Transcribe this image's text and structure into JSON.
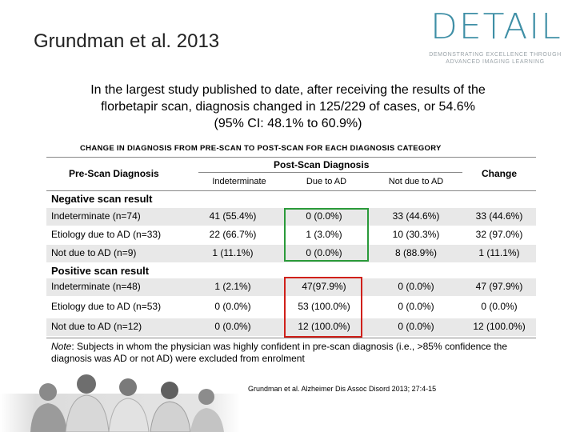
{
  "slide": {
    "title": "Grundman et al. 2013",
    "headline_lines": [
      "In the largest study published to date, after receiving the results of the",
      "florbetapir scan, diagnosis changed in 125/229 of cases, or 54.6%",
      "(95% CI: 48.1% to 60.9%)"
    ]
  },
  "logo": {
    "word": "DETAIL",
    "tagline_1": "DEMONSTRATING EXCELLENCE THROUGH",
    "tagline_2": "ADVANCED IMAGING LEARNING",
    "color": "#3f8fa6"
  },
  "table": {
    "caption": "CHANGE IN DIAGNOSIS FROM PRE-SCAN TO POST-SCAN FOR EACH DIAGNOSIS CATEGORY",
    "pre_scan_header": "Pre-Scan Diagnosis",
    "post_scan_header": "Post-Scan Diagnosis",
    "change_header": "Change",
    "sub_headers": [
      "Indeterminate",
      "Due to AD",
      "Not due to AD"
    ],
    "negative_section": "Negative scan result",
    "positive_section": "Positive scan result",
    "negative_rows": [
      {
        "label": "Indeterminate (n=74)",
        "indeterminate": "41 (55.4%)",
        "due_ad": "0 (0.0%)",
        "not_due_ad": "33 (44.6%)",
        "change": "33 (44.6%)"
      },
      {
        "label": "Etiology due to AD (n=33)",
        "indeterminate": "22 (66.7%)",
        "due_ad": "1 (3.0%)",
        "not_due_ad": "10 (30.3%)",
        "change": "32 (97.0%)"
      },
      {
        "label": "Not due to AD (n=9)",
        "indeterminate": "1 (11.1%)",
        "due_ad": "0 (0.0%)",
        "not_due_ad": "8 (88.9%)",
        "change": "1 (11.1%)"
      }
    ],
    "positive_rows": [
      {
        "label": "Indeterminate (n=48)",
        "indeterminate": "1 (2.1%)",
        "due_ad": "47(97.9%)",
        "not_due_ad": "0 (0.0%)",
        "change": "47 (97.9%)"
      },
      {
        "label": "Etiology due to AD (n=53)",
        "indeterminate": "0 (0.0%)",
        "due_ad": "53 (100.0%)",
        "not_due_ad": "0 (0.0%)",
        "change": "0 (0.0%)"
      },
      {
        "label": "Not due to AD (n=12)",
        "indeterminate": "0 (0.0%)",
        "due_ad": "12 (100.0%)",
        "not_due_ad": "0 (0.0%)",
        "change": "12 (100.0%)"
      }
    ],
    "highlight_colors": {
      "negative": "#2a9a3a",
      "positive": "#d0201a"
    }
  },
  "note": {
    "prefix": "Note",
    "text": ": Subjects in whom the physician was highly confident in pre-scan diagnosis (i.e., >85% confidence the diagnosis was AD or not AD) were excluded from enrolment"
  },
  "citation": "Grundman et al. Alzheimer Dis Assoc Disord 2013; 27:4-15"
}
